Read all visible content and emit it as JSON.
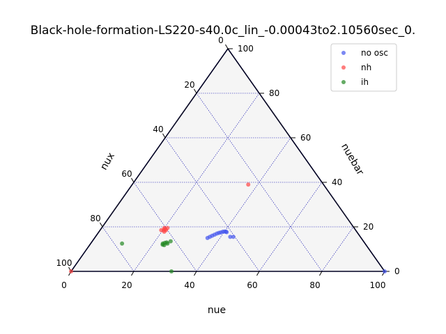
{
  "chart_data": {
    "type": "scatter",
    "subtype": "ternary",
    "title": "Black-hole-formation-LS220-s40.0c_lin_-0.00043to2.10560sec_0.",
    "axes": {
      "bottom": {
        "label": "nue",
        "ticks": [
          0,
          20,
          40,
          60,
          80,
          100
        ]
      },
      "right": {
        "label": "nuebar",
        "ticks": [
          0,
          20,
          40,
          60,
          80,
          100
        ]
      },
      "left": {
        "label": "nux",
        "ticks": [
          0,
          20,
          40,
          60,
          80,
          100
        ]
      }
    },
    "grid": true,
    "background": "#f5f5f5",
    "legend": {
      "placement": "top-right",
      "entries": [
        "no osc",
        "nh",
        "ih"
      ]
    },
    "series": [
      {
        "name": "no osc",
        "color": "#4455ee",
        "points": [
          {
            "nue": 37,
            "nuebar": 16
          },
          {
            "nue": 37.5,
            "nuebar": 16.5
          },
          {
            "nue": 38,
            "nuebar": 17
          },
          {
            "nue": 38.5,
            "nuebar": 17.3
          },
          {
            "nue": 39,
            "nuebar": 17.5
          },
          {
            "nue": 39.5,
            "nuebar": 17.8
          },
          {
            "nue": 40,
            "nuebar": 17.9
          },
          {
            "nue": 40.5,
            "nuebar": 17.8
          },
          {
            "nue": 40.8,
            "nuebar": 17.6
          },
          {
            "nue": 36.5,
            "nuebar": 15.5
          },
          {
            "nue": 36,
            "nuebar": 15
          },
          {
            "nue": 43,
            "nuebar": 15.5
          },
          {
            "nue": 44,
            "nuebar": 15.5
          },
          {
            "nue": 100,
            "nuebar": 0
          }
        ]
      },
      {
        "name": "nh",
        "color": "#ff4444",
        "points": [
          {
            "nue": 37,
            "nuebar": 39
          },
          {
            "nue": 20,
            "nuebar": 19.5
          },
          {
            "nue": 20.5,
            "nuebar": 19
          },
          {
            "nue": 21,
            "nuebar": 19.5
          },
          {
            "nue": 20.3,
            "nuebar": 18.5
          },
          {
            "nue": 19.5,
            "nuebar": 18.5
          },
          {
            "nue": 21,
            "nuebar": 18.5
          },
          {
            "nue": 20.8,
            "nuebar": 17.8
          },
          {
            "nue": 0,
            "nuebar": 0
          }
        ]
      },
      {
        "name": "ih",
        "color": "#228822",
        "points": [
          {
            "nue": 23,
            "nuebar": 12.5
          },
          {
            "nue": 23.5,
            "nuebar": 12.8
          },
          {
            "nue": 24,
            "nuebar": 13
          },
          {
            "nue": 23.2,
            "nuebar": 12
          },
          {
            "nue": 24.5,
            "nuebar": 12.5
          },
          {
            "nue": 25,
            "nuebar": 13.5
          },
          {
            "nue": 23.8,
            "nuebar": 11.8
          },
          {
            "nue": 10,
            "nuebar": 12.5
          },
          {
            "nue": 32,
            "nuebar": 0
          }
        ]
      }
    ]
  }
}
